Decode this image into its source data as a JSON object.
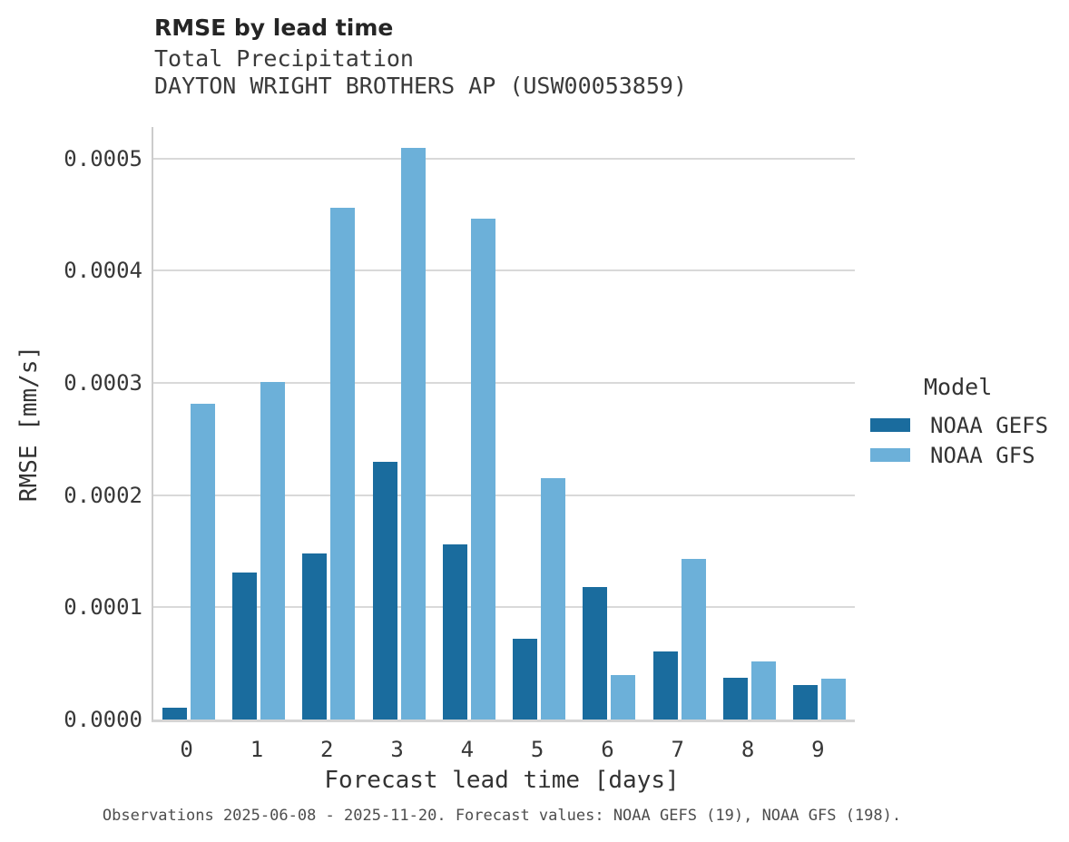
{
  "header": {
    "title": "RMSE by lead time",
    "subtitle1": "Total Precipitation",
    "subtitle2": "DAYTON WRIGHT BROTHERS AP (USW00053859)"
  },
  "caption": "Observations 2025-06-08 - 2025-11-20. Forecast values: NOAA GEFS (19), NOAA GFS (198).",
  "legend": {
    "title": "Model",
    "items": [
      {
        "label": "NOAA GEFS",
        "color": "#1a6c9e"
      },
      {
        "label": "NOAA GFS",
        "color": "#6cb0d9"
      }
    ]
  },
  "colors": {
    "noaa_gefs": "#1a6c9e",
    "noaa_gfs": "#6cb0d9",
    "gridline": "#d9d9d9",
    "axis_line": "#cccccc"
  },
  "chart_data": {
    "type": "bar",
    "title": "RMSE by lead time",
    "subtitle": "Total Precipitation — DAYTON WRIGHT BROTHERS AP (USW00053859)",
    "xlabel": "Forecast lead time [days]",
    "ylabel": "RMSE [mm/s]",
    "categories": [
      "0",
      "1",
      "2",
      "3",
      "4",
      "5",
      "6",
      "7",
      "8",
      "9"
    ],
    "series": [
      {
        "name": "NOAA GEFS",
        "color": "#1a6c9e",
        "values": [
          1.05e-05,
          0.000131,
          0.000148,
          0.00023,
          0.000156,
          7.2e-05,
          0.000118,
          6.1e-05,
          3.7e-05,
          3.1e-05
        ]
      },
      {
        "name": "NOAA GFS",
        "color": "#6cb0d9",
        "values": [
          0.000281,
          0.000301,
          0.000456,
          0.000509,
          0.000446,
          0.000215,
          4e-05,
          0.000143,
          5.2e-05,
          3.6e-05
        ]
      }
    ],
    "ylim": [
      0,
      0.000528
    ],
    "yticks": [
      0.0,
      0.0001,
      0.0002,
      0.0003,
      0.0004,
      0.0005
    ],
    "ytick_labels": [
      "0.0000",
      "0.0001",
      "0.0002",
      "0.0003",
      "0.0004",
      "0.0005"
    ],
    "grid": true,
    "legend_title": "Model",
    "legend_position": "right"
  }
}
